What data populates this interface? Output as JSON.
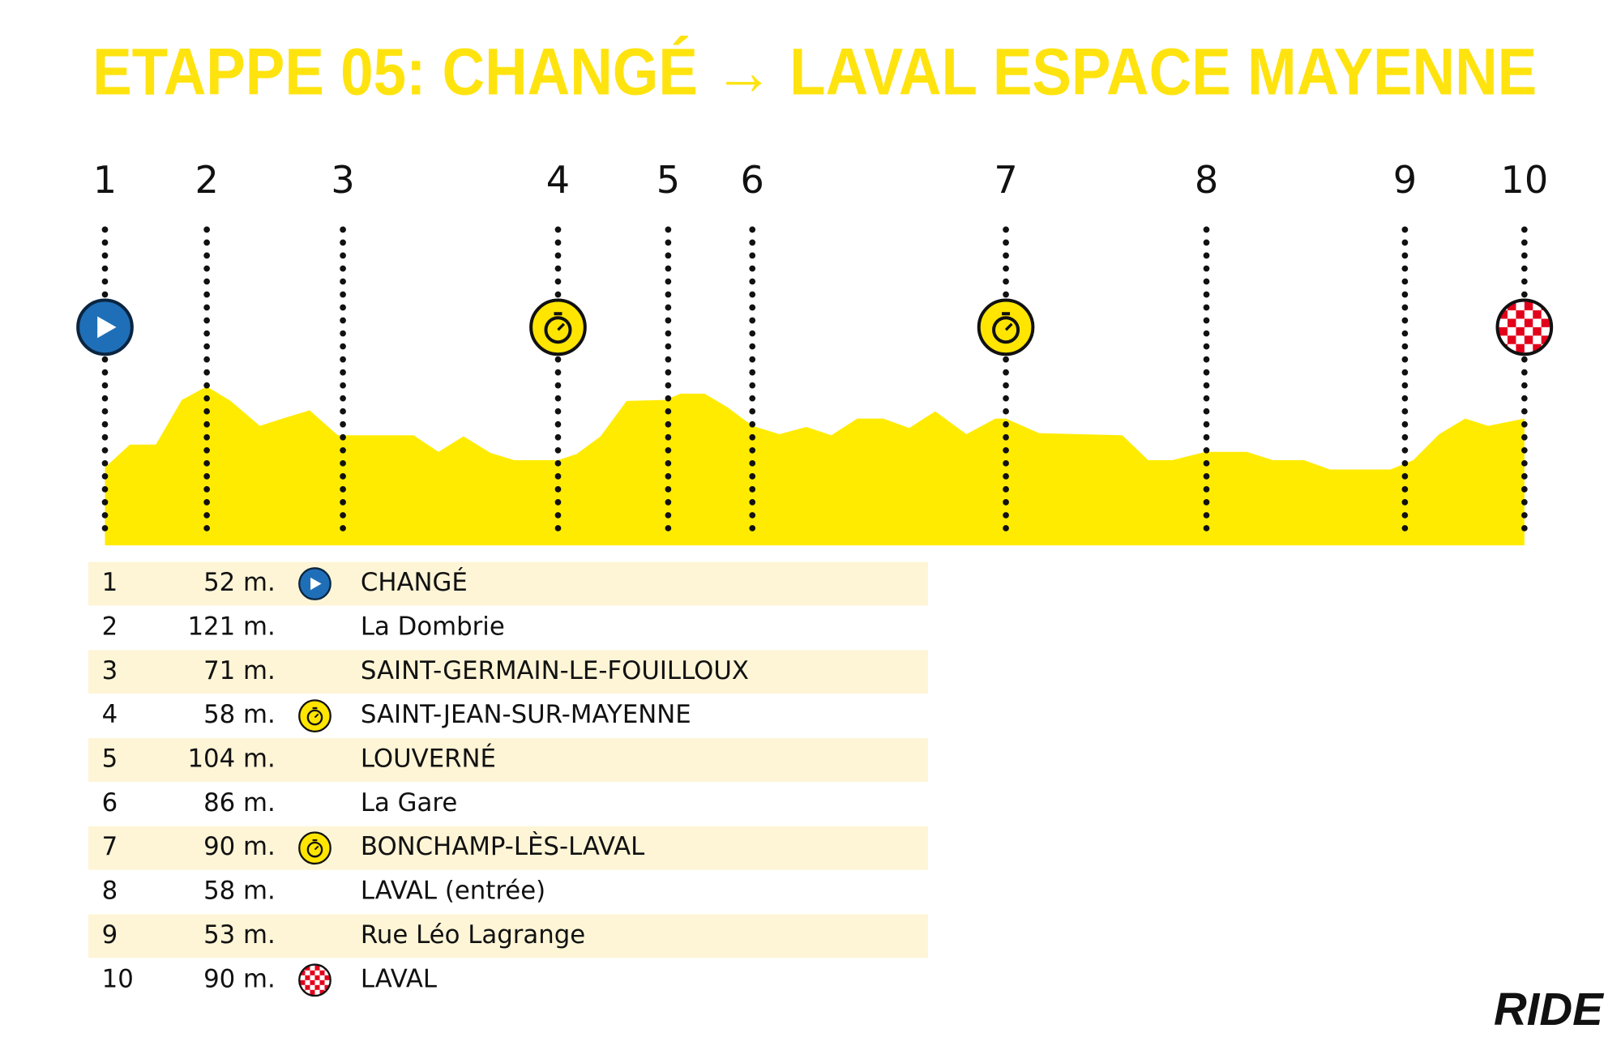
{
  "title": "ETAPPE 05: CHANGÉ → LAVAL ESPACE MAYENNE",
  "waypoints": [
    {
      "number": "1",
      "elevation": "52 m.",
      "icon": "start",
      "name": "CHANGÉ"
    },
    {
      "number": "2",
      "elevation": "121 m.",
      "name": "La Dombrie"
    },
    {
      "number": "3",
      "elevation": "71 m.",
      "name": "SAINT-GERMAIN-LE-FOUILLOUX"
    },
    {
      "number": "4",
      "elevation": "58 m.",
      "icon": "sprint",
      "name": "SAINT-JEAN-SUR-MAYENNE"
    },
    {
      "number": "5",
      "elevation": "104 m.",
      "name": "LOUVERNÉ"
    },
    {
      "number": "6",
      "elevation": "86 m.",
      "name": "La Gare"
    },
    {
      "number": "7",
      "elevation": "90 m.",
      "icon": "sprint",
      "name": "BONCHAMP-LÈS-LAVAL"
    },
    {
      "number": "8",
      "elevation": "58 m.",
      "name": "LAVAL (entrée)"
    },
    {
      "number": "9",
      "elevation": "53 m.",
      "name": "Rue Léo Lagrange"
    },
    {
      "number": "10",
      "elevation": "90 m.",
      "icon": "finish",
      "name": "LAVAL"
    }
  ],
  "logo": "RIDE"
}
